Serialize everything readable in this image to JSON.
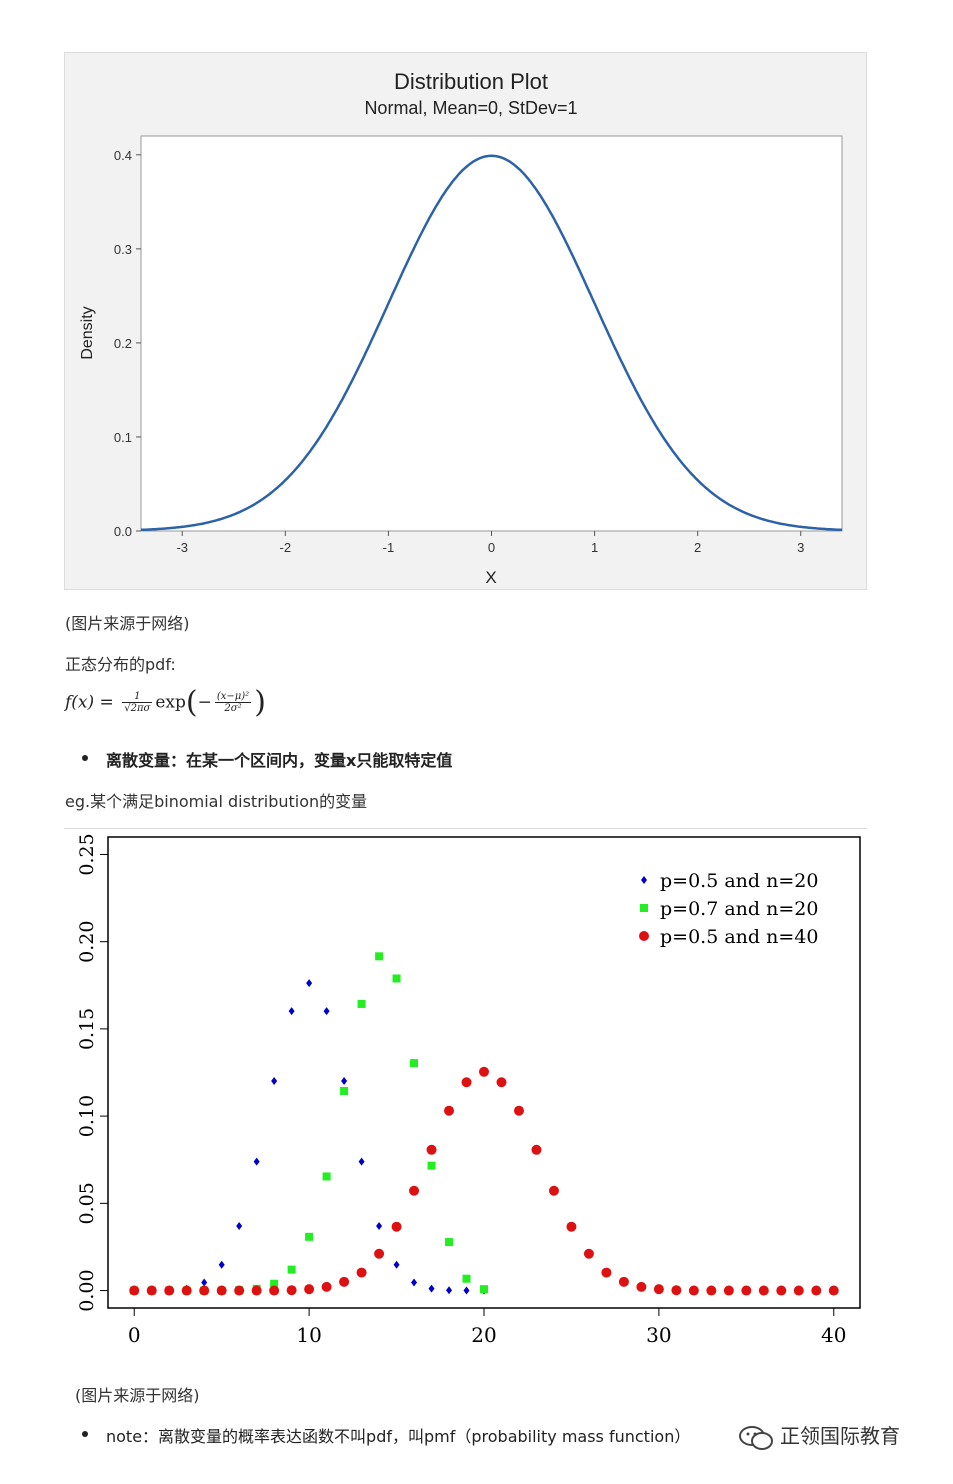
{
  "chart_data": [
    {
      "type": "line",
      "title": "Distribution Plot",
      "subtitle": "Normal, Mean=0, StDev=1",
      "xlabel": "X",
      "ylabel": "Density",
      "xlim": [
        -3.4,
        3.4
      ],
      "ylim": [
        0,
        0.42
      ],
      "xticks": [
        "-3",
        "-2",
        "-1",
        "0",
        "1",
        "2",
        "3"
      ],
      "yticks": [
        "0.0",
        "0.1",
        "0.2",
        "0.3",
        "0.4"
      ],
      "grid": false,
      "line_color": "#2c62a8",
      "series": [
        {
          "x": [
            -3.4,
            -3.2,
            -3.0,
            -2.8,
            -2.6,
            -2.4,
            -2.2,
            -2.0,
            -1.8,
            -1.6,
            -1.4,
            -1.2,
            -1.0,
            -0.8,
            -0.6,
            -0.4,
            -0.2,
            0.0,
            0.2,
            0.4,
            0.6,
            0.8,
            1.0,
            1.2,
            1.4,
            1.6,
            1.8,
            2.0,
            2.2,
            2.4,
            2.6,
            2.8,
            3.0,
            3.2,
            3.4
          ],
          "values": [
            0.0012,
            0.0024,
            0.0044,
            0.0079,
            0.0136,
            0.0224,
            0.0355,
            0.054,
            0.079,
            0.1109,
            0.1497,
            0.1942,
            0.242,
            0.2897,
            0.3332,
            0.3683,
            0.391,
            0.3989,
            0.391,
            0.3683,
            0.3332,
            0.2897,
            0.242,
            0.1942,
            0.1497,
            0.1109,
            0.079,
            0.054,
            0.0355,
            0.0224,
            0.0136,
            0.0079,
            0.0044,
            0.0024,
            0.0012
          ]
        }
      ]
    },
    {
      "type": "scatter",
      "title": "",
      "xlabel": "",
      "ylabel": "",
      "xlim": [
        -1.5,
        41.5
      ],
      "ylim": [
        -0.01,
        0.26
      ],
      "xticks": [
        "0",
        "10",
        "20",
        "30",
        "40"
      ],
      "yticks": [
        "0.00",
        "0.05",
        "0.10",
        "0.15",
        "0.20",
        "0.25"
      ],
      "legend_position": "top-right",
      "series": [
        {
          "name": "p=0.5 and n=20",
          "color": "#0000cc",
          "marker": "diamond",
          "x": [
            0,
            1,
            2,
            3,
            4,
            5,
            6,
            7,
            8,
            9,
            10,
            11,
            12,
            13,
            14,
            15,
            16,
            17,
            18,
            19,
            20
          ],
          "values": [
            0.0,
            0.0,
            0.0002,
            0.0011,
            0.0046,
            0.0148,
            0.037,
            0.0739,
            0.1201,
            0.1602,
            0.1762,
            0.1602,
            0.1201,
            0.0739,
            0.037,
            0.0148,
            0.0046,
            0.0011,
            0.0002,
            0.0,
            0.0
          ]
        },
        {
          "name": "p=0.7 and n=20",
          "color": "#22ee22",
          "marker": "square",
          "x": [
            0,
            1,
            2,
            3,
            4,
            5,
            6,
            7,
            8,
            9,
            10,
            11,
            12,
            13,
            14,
            15,
            16,
            17,
            18,
            19,
            20
          ],
          "values": [
            0.0,
            0.0,
            0.0,
            0.0,
            0.0,
            0.0,
            0.0002,
            0.001,
            0.0039,
            0.012,
            0.0308,
            0.0654,
            0.1144,
            0.1643,
            0.1916,
            0.1789,
            0.1304,
            0.0716,
            0.0278,
            0.0068,
            0.0008
          ]
        },
        {
          "name": "p=0.5 and n=40",
          "color": "#dd1111",
          "marker": "circle",
          "x": [
            0,
            1,
            2,
            3,
            4,
            5,
            6,
            7,
            8,
            9,
            10,
            11,
            12,
            13,
            14,
            15,
            16,
            17,
            18,
            19,
            20,
            21,
            22,
            23,
            24,
            25,
            26,
            27,
            28,
            29,
            30,
            31,
            32,
            33,
            34,
            35,
            36,
            37,
            38,
            39,
            40
          ],
          "values": [
            0.0,
            0.0,
            0.0,
            0.0,
            0.0,
            0.0,
            0.0,
            0.0,
            0.0,
            0.0002,
            0.0008,
            0.0021,
            0.005,
            0.0103,
            0.0211,
            0.0366,
            0.0572,
            0.0807,
            0.1031,
            0.1194,
            0.1254,
            0.1194,
            0.1031,
            0.0807,
            0.0572,
            0.0366,
            0.0211,
            0.0103,
            0.005,
            0.0021,
            0.0008,
            0.0002,
            0.0,
            0.0,
            0.0,
            0.0,
            0.0,
            0.0,
            0.0,
            0.0,
            0.0
          ]
        }
      ]
    }
  ],
  "texts": {
    "caption1": "(图片来源于网络)",
    "pdf_heading": "正态分布的pdf:",
    "bullet_discrete": "离散变量：在某一个区间内，变量x只能取特定值",
    "eg_line": "eg.某个满足binomial distribution的变量",
    "caption2": "(图片来源于网络)",
    "note": "note：离散变量的概率表达函数不叫pdf，叫pmf（probability mass function）",
    "watermark": "正领国际教育"
  },
  "formula": {
    "lhs": "f(x) =",
    "frac1_num": "1",
    "frac1_den": "√2πσ",
    "exp": "exp",
    "minus": "−",
    "frac2_num": "(x−μ)²",
    "frac2_den": "2σ²"
  }
}
